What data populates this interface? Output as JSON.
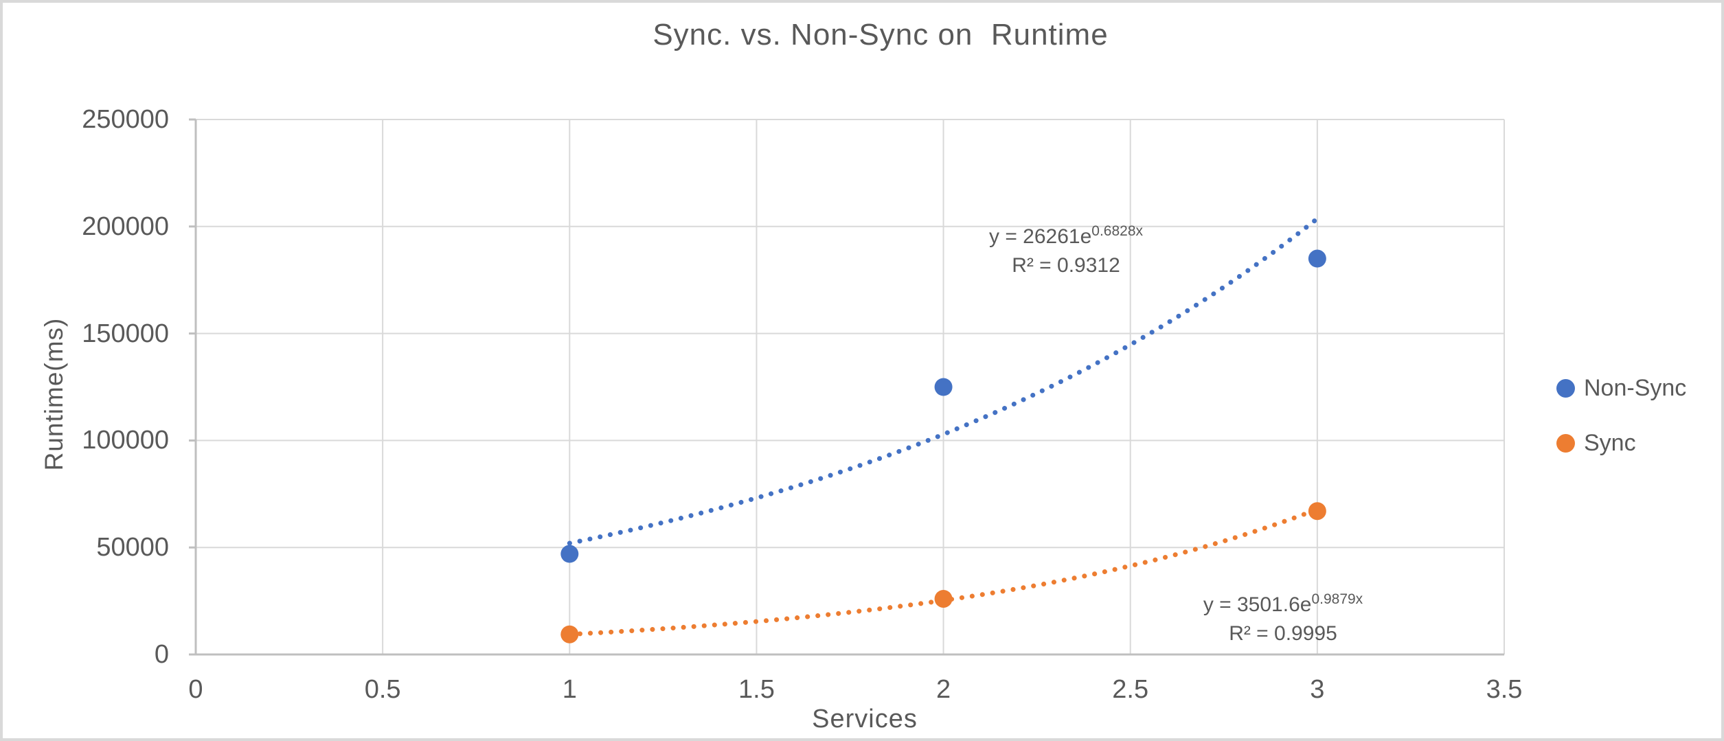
{
  "chart_data": {
    "type": "scatter",
    "title": "Sync. vs. Non-Sync on  Runtime",
    "xlabel": "Services",
    "ylabel": "Runtime(ms)",
    "xlim": [
      0,
      3.5
    ],
    "ylim": [
      0,
      250000
    ],
    "x_ticks": [
      0,
      0.5,
      1,
      1.5,
      2,
      2.5,
      3,
      3.5
    ],
    "x_tick_labels": [
      "0",
      "0.5",
      "1",
      "1.5",
      "2",
      "2.5",
      "3",
      "3.5"
    ],
    "y_ticks": [
      0,
      50000,
      100000,
      150000,
      200000,
      250000
    ],
    "y_tick_labels": [
      "0",
      "50000",
      "100000",
      "150000",
      "200000",
      "250000"
    ],
    "grid": true,
    "legend_position": "right",
    "series": [
      {
        "name": "Non-Sync",
        "color": "#4472C4",
        "x": [
          1,
          2,
          3
        ],
        "y": [
          47000,
          125000,
          185000
        ],
        "trendline": {
          "type": "exponential",
          "a": 26261,
          "b": 0.6828,
          "x_start": 1,
          "x_end": 3.01,
          "equation_prefix": "y = 26261e",
          "equation_exponent": "0.6828x",
          "r_squared_label": "R² = 0.9312"
        }
      },
      {
        "name": "Sync",
        "color": "#ED7D31",
        "x": [
          1,
          2,
          3
        ],
        "y": [
          9400,
          26000,
          67000
        ],
        "trendline": {
          "type": "exponential",
          "a": 3501.6,
          "b": 0.9879,
          "x_start": 1,
          "x_end": 3.0,
          "equation_prefix": "y = 3501.6e",
          "equation_exponent": "0.9879x",
          "r_squared_label": "R² = 0.9995"
        }
      }
    ],
    "colors": {
      "text": "#595959",
      "gridline": "#D9D9D9",
      "axis": "#BFBFBF",
      "chart_border": "#D9D9D9",
      "background": "#FFFFFF"
    }
  }
}
